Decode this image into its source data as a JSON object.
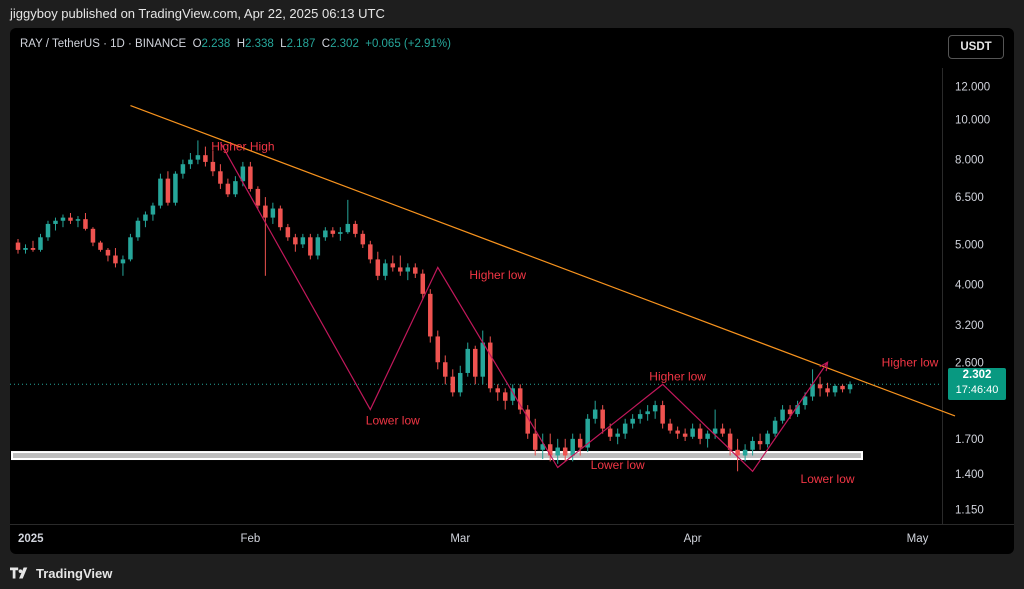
{
  "header": {
    "published": "jiggyboy published on TradingView.com, Apr 22, 2025 06:13 UTC"
  },
  "legend": {
    "symbol": "RAY / TetherUS · 1D · BINANCE",
    "o_label": "O",
    "o": "2.238",
    "h_label": "H",
    "h": "2.338",
    "l_label": "L",
    "l": "2.187",
    "c_label": "C",
    "c": "2.302",
    "change": "+0.065 (+2.91%)"
  },
  "currency": "USDT",
  "current_price": {
    "price": "2.302",
    "countdown": "17:46:40"
  },
  "footer": {
    "brand": "TradingView"
  },
  "colors": {
    "up": "#26a69a",
    "down": "#ef5350",
    "trendline": "#f7931e",
    "pattern": "#c2185b",
    "annotation": "#f23645"
  },
  "chart_data": {
    "type": "candlestick",
    "title": "RAY / TetherUS · 1D · BINANCE",
    "y_scale": "log",
    "y_ticks": [
      "12.000",
      "10.000",
      "8.000",
      "6.500",
      "5.000",
      "4.000",
      "3.200",
      "2.600",
      "1.700",
      "1.400",
      "1.150"
    ],
    "x_ticks": [
      "2025",
      "Feb",
      "Mar",
      "Apr",
      "May"
    ],
    "x_tick_dates": [
      "2025-01-01",
      "2025-02-01",
      "2025-03-01",
      "2025-04-01",
      "2025-05-01"
    ],
    "x_range": [
      "2025-01-01",
      "2025-05-04"
    ],
    "y_range": [
      1.06,
      13.3
    ],
    "candles": [
      {
        "d": "2025-01-01",
        "o": 5.05,
        "h": 5.15,
        "l": 4.75,
        "c": 4.85
      },
      {
        "d": "2025-01-02",
        "o": 4.85,
        "h": 5.0,
        "l": 4.75,
        "c": 4.9
      },
      {
        "d": "2025-01-03",
        "o": 4.9,
        "h": 5.1,
        "l": 4.8,
        "c": 4.85
      },
      {
        "d": "2025-01-04",
        "o": 4.85,
        "h": 5.3,
        "l": 4.8,
        "c": 5.2
      },
      {
        "d": "2025-01-05",
        "o": 5.2,
        "h": 5.7,
        "l": 5.1,
        "c": 5.6
      },
      {
        "d": "2025-01-06",
        "o": 5.6,
        "h": 5.8,
        "l": 5.4,
        "c": 5.7
      },
      {
        "d": "2025-01-07",
        "o": 5.7,
        "h": 5.9,
        "l": 5.5,
        "c": 5.8
      },
      {
        "d": "2025-01-08",
        "o": 5.8,
        "h": 5.95,
        "l": 5.6,
        "c": 5.7
      },
      {
        "d": "2025-01-09",
        "o": 5.7,
        "h": 5.85,
        "l": 5.5,
        "c": 5.75
      },
      {
        "d": "2025-01-10",
        "o": 5.75,
        "h": 5.95,
        "l": 5.4,
        "c": 5.45
      },
      {
        "d": "2025-01-11",
        "o": 5.45,
        "h": 5.5,
        "l": 4.95,
        "c": 5.05
      },
      {
        "d": "2025-01-12",
        "o": 5.05,
        "h": 5.1,
        "l": 4.8,
        "c": 4.85
      },
      {
        "d": "2025-01-13",
        "o": 4.85,
        "h": 4.9,
        "l": 4.55,
        "c": 4.7
      },
      {
        "d": "2025-01-14",
        "o": 4.7,
        "h": 4.9,
        "l": 4.4,
        "c": 4.5
      },
      {
        "d": "2025-01-15",
        "o": 4.5,
        "h": 4.7,
        "l": 4.2,
        "c": 4.6
      },
      {
        "d": "2025-01-16",
        "o": 4.6,
        "h": 5.3,
        "l": 4.55,
        "c": 5.2
      },
      {
        "d": "2025-01-17",
        "o": 5.2,
        "h": 5.8,
        "l": 5.1,
        "c": 5.7
      },
      {
        "d": "2025-01-18",
        "o": 5.7,
        "h": 6.0,
        "l": 5.5,
        "c": 5.9
      },
      {
        "d": "2025-01-19",
        "o": 5.9,
        "h": 6.3,
        "l": 5.7,
        "c": 6.2
      },
      {
        "d": "2025-01-20",
        "o": 6.2,
        "h": 7.4,
        "l": 6.1,
        "c": 7.2
      },
      {
        "d": "2025-01-21",
        "o": 7.2,
        "h": 7.5,
        "l": 6.2,
        "c": 6.3
      },
      {
        "d": "2025-01-22",
        "o": 6.3,
        "h": 7.5,
        "l": 6.2,
        "c": 7.4
      },
      {
        "d": "2025-01-23",
        "o": 7.4,
        "h": 8.0,
        "l": 7.2,
        "c": 7.8
      },
      {
        "d": "2025-01-24",
        "o": 7.8,
        "h": 8.3,
        "l": 7.6,
        "c": 8.0
      },
      {
        "d": "2025-01-25",
        "o": 8.0,
        "h": 8.9,
        "l": 7.8,
        "c": 8.2
      },
      {
        "d": "2025-01-26",
        "o": 8.2,
        "h": 8.6,
        "l": 7.7,
        "c": 7.9
      },
      {
        "d": "2025-01-27",
        "o": 7.9,
        "h": 8.4,
        "l": 7.3,
        "c": 7.5
      },
      {
        "d": "2025-01-28",
        "o": 7.5,
        "h": 7.8,
        "l": 6.8,
        "c": 7.0
      },
      {
        "d": "2025-01-29",
        "o": 7.0,
        "h": 7.2,
        "l": 6.5,
        "c": 6.6
      },
      {
        "d": "2025-01-30",
        "o": 6.6,
        "h": 7.3,
        "l": 6.5,
        "c": 7.1
      },
      {
        "d": "2025-01-31",
        "o": 7.1,
        "h": 7.9,
        "l": 6.9,
        "c": 7.7
      },
      {
        "d": "2025-02-01",
        "o": 7.7,
        "h": 7.9,
        "l": 6.7,
        "c": 6.8
      },
      {
        "d": "2025-02-02",
        "o": 6.8,
        "h": 6.9,
        "l": 6.1,
        "c": 6.2
      },
      {
        "d": "2025-02-03",
        "o": 6.2,
        "h": 6.5,
        "l": 4.2,
        "c": 5.8
      },
      {
        "d": "2025-02-04",
        "o": 5.8,
        "h": 6.3,
        "l": 5.6,
        "c": 6.1
      },
      {
        "d": "2025-02-05",
        "o": 6.1,
        "h": 6.2,
        "l": 5.4,
        "c": 5.5
      },
      {
        "d": "2025-02-06",
        "o": 5.5,
        "h": 5.6,
        "l": 5.1,
        "c": 5.2
      },
      {
        "d": "2025-02-07",
        "o": 5.2,
        "h": 5.3,
        "l": 4.8,
        "c": 5.0
      },
      {
        "d": "2025-02-08",
        "o": 5.0,
        "h": 5.3,
        "l": 4.9,
        "c": 5.2
      },
      {
        "d": "2025-02-09",
        "o": 5.2,
        "h": 5.3,
        "l": 4.6,
        "c": 4.7
      },
      {
        "d": "2025-02-10",
        "o": 4.7,
        "h": 5.3,
        "l": 4.6,
        "c": 5.2
      },
      {
        "d": "2025-02-11",
        "o": 5.2,
        "h": 5.5,
        "l": 5.1,
        "c": 5.4
      },
      {
        "d": "2025-02-12",
        "o": 5.4,
        "h": 5.5,
        "l": 5.2,
        "c": 5.3
      },
      {
        "d": "2025-02-13",
        "o": 5.3,
        "h": 5.5,
        "l": 5.1,
        "c": 5.35
      },
      {
        "d": "2025-02-14",
        "o": 5.35,
        "h": 6.4,
        "l": 5.3,
        "c": 5.6
      },
      {
        "d": "2025-02-15",
        "o": 5.6,
        "h": 5.7,
        "l": 5.2,
        "c": 5.3
      },
      {
        "d": "2025-02-16",
        "o": 5.3,
        "h": 5.4,
        "l": 4.9,
        "c": 5.0
      },
      {
        "d": "2025-02-17",
        "o": 5.0,
        "h": 5.1,
        "l": 4.5,
        "c": 4.6
      },
      {
        "d": "2025-02-18",
        "o": 4.6,
        "h": 4.8,
        "l": 4.1,
        "c": 4.2
      },
      {
        "d": "2025-02-19",
        "o": 4.2,
        "h": 4.6,
        "l": 4.1,
        "c": 4.5
      },
      {
        "d": "2025-02-20",
        "o": 4.5,
        "h": 4.7,
        "l": 4.3,
        "c": 4.4
      },
      {
        "d": "2025-02-21",
        "o": 4.4,
        "h": 4.7,
        "l": 4.2,
        "c": 4.3
      },
      {
        "d": "2025-02-22",
        "o": 4.3,
        "h": 4.5,
        "l": 4.1,
        "c": 4.4
      },
      {
        "d": "2025-02-23",
        "o": 4.4,
        "h": 4.5,
        "l": 4.15,
        "c": 4.25
      },
      {
        "d": "2025-02-24",
        "o": 4.25,
        "h": 4.35,
        "l": 3.7,
        "c": 3.8
      },
      {
        "d": "2025-02-25",
        "o": 3.8,
        "h": 3.9,
        "l": 2.9,
        "c": 3.0
      },
      {
        "d": "2025-02-26",
        "o": 3.0,
        "h": 3.1,
        "l": 2.5,
        "c": 2.6
      },
      {
        "d": "2025-02-27",
        "o": 2.6,
        "h": 2.7,
        "l": 2.3,
        "c": 2.4
      },
      {
        "d": "2025-02-28",
        "o": 2.4,
        "h": 2.5,
        "l": 2.15,
        "c": 2.2
      },
      {
        "d": "2025-03-01",
        "o": 2.2,
        "h": 2.55,
        "l": 2.15,
        "c": 2.45
      },
      {
        "d": "2025-03-02",
        "o": 2.45,
        "h": 2.9,
        "l": 2.4,
        "c": 2.8
      },
      {
        "d": "2025-03-03",
        "o": 2.8,
        "h": 2.85,
        "l": 2.3,
        "c": 2.4
      },
      {
        "d": "2025-03-04",
        "o": 2.4,
        "h": 3.1,
        "l": 2.3,
        "c": 2.9
      },
      {
        "d": "2025-03-05",
        "o": 2.9,
        "h": 3.0,
        "l": 2.2,
        "c": 2.25
      },
      {
        "d": "2025-03-06",
        "o": 2.25,
        "h": 2.3,
        "l": 2.1,
        "c": 2.2
      },
      {
        "d": "2025-03-07",
        "o": 2.2,
        "h": 2.25,
        "l": 2.0,
        "c": 2.1
      },
      {
        "d": "2025-03-08",
        "o": 2.1,
        "h": 2.3,
        "l": 2.05,
        "c": 2.25
      },
      {
        "d": "2025-03-09",
        "o": 2.25,
        "h": 2.3,
        "l": 1.95,
        "c": 2.0
      },
      {
        "d": "2025-03-10",
        "o": 2.0,
        "h": 2.05,
        "l": 1.7,
        "c": 1.75
      },
      {
        "d": "2025-03-11",
        "o": 1.75,
        "h": 1.9,
        "l": 1.55,
        "c": 1.6
      },
      {
        "d": "2025-03-12",
        "o": 1.6,
        "h": 1.75,
        "l": 1.52,
        "c": 1.65
      },
      {
        "d": "2025-03-13",
        "o": 1.65,
        "h": 1.75,
        "l": 1.5,
        "c": 1.55
      },
      {
        "d": "2025-03-14",
        "o": 1.55,
        "h": 1.7,
        "l": 1.48,
        "c": 1.62
      },
      {
        "d": "2025-03-15",
        "o": 1.62,
        "h": 1.7,
        "l": 1.5,
        "c": 1.55
      },
      {
        "d": "2025-03-16",
        "o": 1.55,
        "h": 1.75,
        "l": 1.5,
        "c": 1.7
      },
      {
        "d": "2025-03-17",
        "o": 1.7,
        "h": 1.75,
        "l": 1.55,
        "c": 1.62
      },
      {
        "d": "2025-03-18",
        "o": 1.62,
        "h": 1.95,
        "l": 1.58,
        "c": 1.9
      },
      {
        "d": "2025-03-19",
        "o": 1.9,
        "h": 2.1,
        "l": 1.85,
        "c": 2.0
      },
      {
        "d": "2025-03-20",
        "o": 2.0,
        "h": 2.05,
        "l": 1.75,
        "c": 1.8
      },
      {
        "d": "2025-03-21",
        "o": 1.8,
        "h": 1.85,
        "l": 1.68,
        "c": 1.72
      },
      {
        "d": "2025-03-22",
        "o": 1.72,
        "h": 1.8,
        "l": 1.65,
        "c": 1.75
      },
      {
        "d": "2025-03-23",
        "o": 1.75,
        "h": 1.9,
        "l": 1.7,
        "c": 1.85
      },
      {
        "d": "2025-03-24",
        "o": 1.85,
        "h": 1.95,
        "l": 1.8,
        "c": 1.9
      },
      {
        "d": "2025-03-25",
        "o": 1.9,
        "h": 2.0,
        "l": 1.85,
        "c": 1.95
      },
      {
        "d": "2025-03-26",
        "o": 1.95,
        "h": 2.05,
        "l": 1.88,
        "c": 1.98
      },
      {
        "d": "2025-03-27",
        "o": 1.98,
        "h": 2.1,
        "l": 1.9,
        "c": 2.05
      },
      {
        "d": "2025-03-28",
        "o": 2.05,
        "h": 2.1,
        "l": 1.8,
        "c": 1.85
      },
      {
        "d": "2025-03-29",
        "o": 1.85,
        "h": 1.9,
        "l": 1.75,
        "c": 1.78
      },
      {
        "d": "2025-03-30",
        "o": 1.78,
        "h": 1.82,
        "l": 1.7,
        "c": 1.75
      },
      {
        "d": "2025-03-31",
        "o": 1.75,
        "h": 1.8,
        "l": 1.68,
        "c": 1.72
      },
      {
        "d": "2025-04-01",
        "o": 1.72,
        "h": 1.85,
        "l": 1.7,
        "c": 1.8
      },
      {
        "d": "2025-04-02",
        "o": 1.8,
        "h": 1.85,
        "l": 1.65,
        "c": 1.7
      },
      {
        "d": "2025-04-03",
        "o": 1.7,
        "h": 1.78,
        "l": 1.62,
        "c": 1.75
      },
      {
        "d": "2025-04-04",
        "o": 1.75,
        "h": 2.0,
        "l": 1.7,
        "c": 1.8
      },
      {
        "d": "2025-04-05",
        "o": 1.8,
        "h": 1.85,
        "l": 1.72,
        "c": 1.75
      },
      {
        "d": "2025-04-06",
        "o": 1.75,
        "h": 1.8,
        "l": 1.55,
        "c": 1.6
      },
      {
        "d": "2025-04-07",
        "o": 1.6,
        "h": 1.7,
        "l": 1.42,
        "c": 1.55
      },
      {
        "d": "2025-04-08",
        "o": 1.55,
        "h": 1.65,
        "l": 1.5,
        "c": 1.6
      },
      {
        "d": "2025-04-09",
        "o": 1.6,
        "h": 1.72,
        "l": 1.55,
        "c": 1.68
      },
      {
        "d": "2025-04-10",
        "o": 1.68,
        "h": 1.75,
        "l": 1.6,
        "c": 1.65
      },
      {
        "d": "2025-04-11",
        "o": 1.65,
        "h": 1.78,
        "l": 1.62,
        "c": 1.75
      },
      {
        "d": "2025-04-12",
        "o": 1.75,
        "h": 1.92,
        "l": 1.72,
        "c": 1.88
      },
      {
        "d": "2025-04-13",
        "o": 1.88,
        "h": 2.05,
        "l": 1.85,
        "c": 2.0
      },
      {
        "d": "2025-04-14",
        "o": 2.0,
        "h": 2.05,
        "l": 1.9,
        "c": 1.95
      },
      {
        "d": "2025-04-15",
        "o": 1.95,
        "h": 2.1,
        "l": 1.92,
        "c": 2.05
      },
      {
        "d": "2025-04-16",
        "o": 2.05,
        "h": 2.2,
        "l": 2.0,
        "c": 2.15
      },
      {
        "d": "2025-04-17",
        "o": 2.15,
        "h": 2.5,
        "l": 2.1,
        "c": 2.3
      },
      {
        "d": "2025-04-18",
        "o": 2.3,
        "h": 2.4,
        "l": 2.15,
        "c": 2.25
      },
      {
        "d": "2025-04-19",
        "o": 2.25,
        "h": 2.32,
        "l": 2.15,
        "c": 2.2
      },
      {
        "d": "2025-04-20",
        "o": 2.2,
        "h": 2.3,
        "l": 2.15,
        "c": 2.28
      },
      {
        "d": "2025-04-21",
        "o": 2.28,
        "h": 2.3,
        "l": 2.2,
        "c": 2.238
      },
      {
        "d": "2025-04-22",
        "o": 2.238,
        "h": 2.338,
        "l": 2.187,
        "c": 2.302
      }
    ],
    "drawings": {
      "trendline": [
        [
          "2025-01-16",
          10.8
        ],
        [
          "2025-05-06",
          1.93
        ]
      ],
      "support_zone": [
        1.52,
        1.58
      ],
      "zigzag": [
        [
          "2025-01-28",
          8.8
        ],
        [
          "2025-02-17",
          2.0
        ],
        [
          "2025-02-26",
          4.4
        ],
        [
          "2025-03-14",
          1.45
        ],
        [
          "2025-03-28",
          2.3
        ],
        [
          "2025-04-09",
          1.42
        ],
        [
          "2025-04-19",
          2.6
        ]
      ],
      "labels": [
        {
          "text": "Higher High",
          "d": "2025-01-31",
          "p": 8.6
        },
        {
          "text": "Lower low",
          "d": "2025-02-20",
          "p": 1.88
        },
        {
          "text": "Higher low",
          "d": "2025-03-06",
          "p": 4.22
        },
        {
          "text": "Lower low",
          "d": "2025-03-22",
          "p": 1.47
        },
        {
          "text": "Higher low",
          "d": "2025-03-30",
          "p": 2.4
        },
        {
          "text": "Lower low",
          "d": "2025-04-19",
          "p": 1.36
        },
        {
          "text": "Higher low",
          "d": "2025-04-30",
          "p": 2.6
        }
      ]
    }
  }
}
